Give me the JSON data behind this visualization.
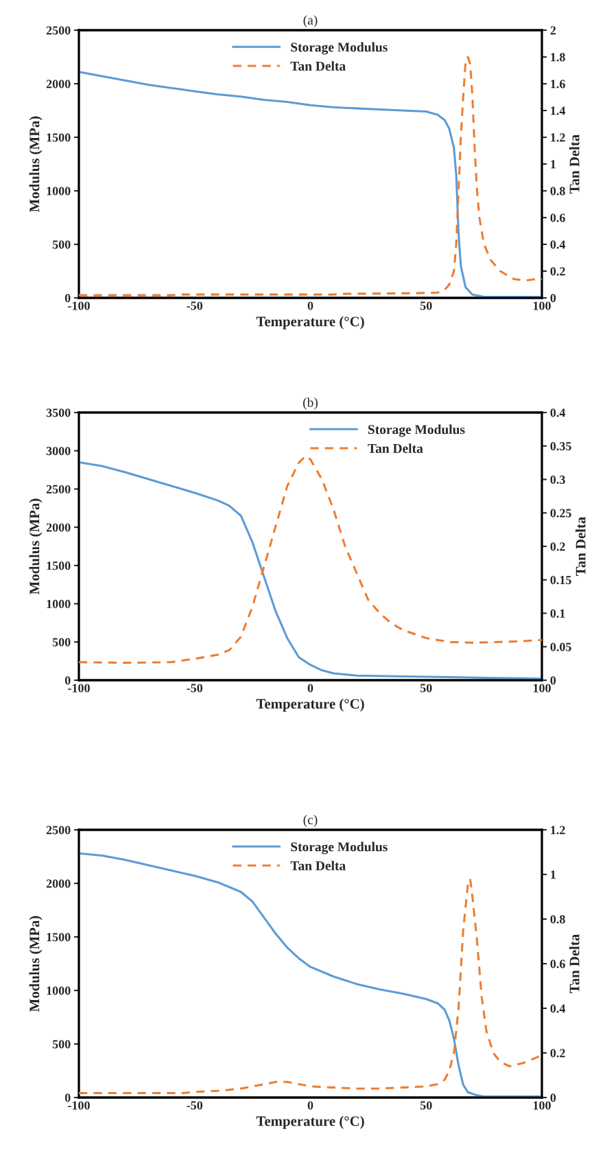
{
  "chart_data": [
    {
      "type": "line",
      "title": "(a)",
      "xlabel": "Temperature (°C)",
      "ylabel": "Modulus (MPa)",
      "y2label": "Tan Delta",
      "xlim": [
        -100,
        100
      ],
      "xticks": [
        -100,
        -50,
        0,
        50,
        100
      ],
      "ylim": [
        0,
        2500
      ],
      "yticks": [
        0,
        500,
        1000,
        1500,
        2000,
        2500
      ],
      "y2lim": [
        0,
        2
      ],
      "y2ticks": [
        0,
        0.2,
        0.4,
        0.6,
        0.8,
        1,
        1.2,
        1.4,
        1.6,
        1.8,
        2
      ],
      "grid": false,
      "legend": "top",
      "series": [
        {
          "name": "Storage Modulus",
          "color": "#5b9bd5",
          "line_style": "solid",
          "x": [
            -100,
            -90,
            -80,
            -70,
            -60,
            -50,
            -40,
            -30,
            -20,
            -10,
            0,
            10,
            20,
            30,
            40,
            50,
            55,
            58,
            60,
            62,
            63,
            64,
            65,
            67,
            70,
            75,
            100
          ],
          "values": [
            2110,
            2070,
            2030,
            1990,
            1960,
            1930,
            1900,
            1880,
            1850,
            1830,
            1800,
            1780,
            1770,
            1760,
            1750,
            1740,
            1710,
            1660,
            1580,
            1400,
            1150,
            600,
            300,
            100,
            30,
            10,
            10
          ]
        },
        {
          "name": "Tan Delta",
          "color": "#ed7d31",
          "line_style": "dashed",
          "axis": "y2",
          "x": [
            -100,
            -60,
            -55,
            10,
            15,
            45,
            55,
            58,
            60,
            62,
            63,
            64,
            65,
            66,
            67,
            68,
            69,
            70,
            71,
            72,
            73,
            75,
            78,
            82,
            88,
            93,
            97,
            100
          ],
          "values": [
            0.02,
            0.02,
            0.025,
            0.025,
            0.03,
            0.035,
            0.04,
            0.06,
            0.1,
            0.2,
            0.4,
            0.8,
            1.2,
            1.5,
            1.75,
            1.8,
            1.75,
            1.5,
            1.1,
            0.8,
            0.6,
            0.4,
            0.28,
            0.2,
            0.14,
            0.13,
            0.14,
            0.14
          ]
        }
      ]
    },
    {
      "type": "line",
      "title": "(b)",
      "xlabel": "Temperature (°C)",
      "ylabel": "Modulus (MPa)",
      "y2label": "Tan Delta",
      "xlim": [
        -100,
        100
      ],
      "xticks": [
        -100,
        -50,
        0,
        50,
        100
      ],
      "ylim": [
        0,
        3500
      ],
      "yticks": [
        0,
        500,
        1000,
        1500,
        2000,
        2500,
        3000,
        3500
      ],
      "y2lim": [
        0,
        0.4
      ],
      "y2ticks": [
        0,
        0.05,
        0.1,
        0.15,
        0.2,
        0.25,
        0.3,
        0.35,
        0.4
      ],
      "grid": false,
      "legend": "top right",
      "series": [
        {
          "name": "Storage Modulus",
          "color": "#5b9bd5",
          "line_style": "solid",
          "x": [
            -100,
            -90,
            -80,
            -70,
            -60,
            -50,
            -40,
            -35,
            -30,
            -25,
            -20,
            -15,
            -10,
            -5,
            0,
            5,
            10,
            20,
            40,
            60,
            80,
            100
          ],
          "values": [
            2850,
            2800,
            2720,
            2630,
            2540,
            2450,
            2350,
            2280,
            2150,
            1800,
            1350,
            900,
            550,
            300,
            200,
            130,
            90,
            60,
            50,
            40,
            30,
            20
          ]
        },
        {
          "name": "Tan Delta",
          "color": "#ed7d31",
          "line_style": "dashed",
          "axis": "y2",
          "x": [
            -100,
            -80,
            -60,
            -50,
            -40,
            -35,
            -30,
            -25,
            -20,
            -15,
            -10,
            -5,
            -2,
            0,
            5,
            10,
            15,
            20,
            25,
            30,
            35,
            40,
            50,
            60,
            70,
            80,
            90,
            100
          ],
          "values": [
            0.027,
            0.026,
            0.027,
            0.032,
            0.038,
            0.045,
            0.065,
            0.11,
            0.17,
            0.23,
            0.29,
            0.325,
            0.335,
            0.33,
            0.3,
            0.255,
            0.2,
            0.16,
            0.12,
            0.1,
            0.085,
            0.075,
            0.063,
            0.057,
            0.056,
            0.057,
            0.058,
            0.06
          ]
        }
      ]
    },
    {
      "type": "line",
      "title": "(c)",
      "xlabel": "Temperature (°C)",
      "ylabel": "Modulus (MPa)",
      "y2label": "Tan Delta",
      "xlim": [
        -100,
        100
      ],
      "xticks": [
        -100,
        -50,
        0,
        50,
        100
      ],
      "ylim": [
        0,
        2500
      ],
      "yticks": [
        0,
        500,
        1000,
        1500,
        2000,
        2500
      ],
      "y2lim": [
        0,
        1.2
      ],
      "y2ticks": [
        0,
        0.2,
        0.4,
        0.6,
        0.8,
        1,
        1.2
      ],
      "grid": false,
      "legend": "top",
      "series": [
        {
          "name": "Storage Modulus",
          "color": "#5b9bd5",
          "line_style": "solid",
          "x": [
            -100,
            -90,
            -80,
            -70,
            -60,
            -50,
            -40,
            -30,
            -25,
            -20,
            -15,
            -10,
            -5,
            0,
            10,
            20,
            30,
            40,
            50,
            55,
            58,
            60,
            62,
            64,
            66,
            68,
            72,
            75,
            100
          ],
          "values": [
            2280,
            2260,
            2220,
            2170,
            2120,
            2070,
            2010,
            1920,
            1830,
            1680,
            1530,
            1400,
            1300,
            1220,
            1130,
            1060,
            1010,
            970,
            920,
            880,
            820,
            720,
            550,
            300,
            120,
            50,
            20,
            10,
            10
          ]
        },
        {
          "name": "Tan Delta",
          "color": "#ed7d31",
          "line_style": "dashed",
          "axis": "y2",
          "x": [
            -100,
            -55,
            -50,
            -40,
            -30,
            -20,
            -15,
            -10,
            -5,
            0,
            10,
            20,
            30,
            40,
            50,
            55,
            58,
            60,
            62,
            64,
            66,
            68,
            69,
            70,
            72,
            74,
            76,
            79,
            82,
            86,
            92,
            100
          ],
          "values": [
            0.02,
            0.02,
            0.025,
            0.03,
            0.04,
            0.06,
            0.07,
            0.07,
            0.06,
            0.05,
            0.045,
            0.04,
            0.04,
            0.045,
            0.05,
            0.06,
            0.08,
            0.12,
            0.2,
            0.4,
            0.75,
            0.95,
            0.98,
            0.9,
            0.7,
            0.45,
            0.3,
            0.2,
            0.16,
            0.14,
            0.155,
            0.19
          ]
        }
      ]
    }
  ]
}
